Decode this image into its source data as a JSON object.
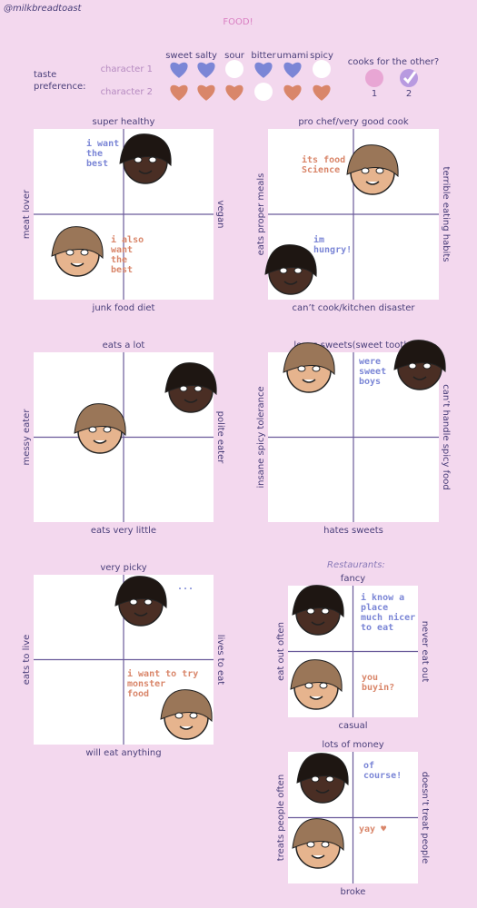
{
  "header": {
    "credit": "@milkbreadtoast",
    "title": "FOOD!"
  },
  "taste": {
    "label": "taste preference:",
    "columns": [
      "sweet",
      "salty",
      "sour",
      "bitter",
      "umami",
      "spicy"
    ],
    "rows": [
      {
        "name": "character 1",
        "color": "#7b86d6",
        "likes": [
          true,
          true,
          false,
          true,
          true,
          false
        ]
      },
      {
        "name": "character 2",
        "color": "#d9866a",
        "likes": [
          true,
          true,
          true,
          false,
          true,
          true
        ]
      }
    ]
  },
  "cooks": {
    "label": "cooks for the other?",
    "options": [
      "1",
      "2"
    ],
    "checked": [
      false,
      true
    ]
  },
  "restaurants_label": "Restaurants:",
  "panels": [
    {
      "top": "super healthy",
      "bottom": "junk food diet",
      "left": "meat lover",
      "right": "vegan",
      "notes": [
        {
          "lines": [
            "i want",
            "the",
            "best"
          ],
          "color": "#7b86d6"
        },
        {
          "lines": [
            "i also",
            "want",
            "the",
            "best"
          ],
          "color": "#d9866a"
        }
      ]
    },
    {
      "top": "pro chef/very good cook",
      "bottom": "can’t cook/kitchen disaster",
      "left": "eats proper meals",
      "right": "terrible eating habits",
      "notes": [
        {
          "lines": [
            "its food",
            "Science"
          ],
          "color": "#d9866a"
        },
        {
          "lines": [
            "im",
            "hungry!"
          ],
          "color": "#7b86d6"
        }
      ]
    },
    {
      "top": "eats a lot",
      "bottom": "eats very little",
      "left": "messy eater",
      "right": "polite eater",
      "notes": []
    },
    {
      "top": "loves sweets(sweet tooth)",
      "bottom": "hates sweets",
      "left": "insane spicy tolerance",
      "right": "can’t handle spicy food",
      "notes": [
        {
          "lines": [
            "were",
            "sweet",
            "boys"
          ],
          "color": "#7b86d6"
        }
      ]
    },
    {
      "top": "very picky",
      "bottom": "will eat anything",
      "left": "eats to live",
      "right": "lives to eat",
      "notes": [
        {
          "lines": [
            "..."
          ],
          "color": "#7b86d6"
        },
        {
          "lines": [
            "i want to try",
            "monster",
            "food"
          ],
          "color": "#d9866a"
        }
      ]
    },
    {
      "top": "fancy",
      "bottom": "casual",
      "left": "eat out often",
      "right": "never eat out",
      "notes": [
        {
          "lines": [
            "i know a",
            "place",
            "much nicer",
            "to eat"
          ],
          "color": "#7b86d6"
        },
        {
          "lines": [
            "you",
            "buyin?"
          ],
          "color": "#d9866a"
        }
      ]
    },
    {
      "top": "lots of money",
      "bottom": "broke",
      "left": "treats people often",
      "right": "doesn’t treat people",
      "notes": [
        {
          "lines": [
            "of",
            "course!"
          ],
          "color": "#7b86d6"
        },
        {
          "lines": [
            "yay ♥"
          ],
          "color": "#d9866a"
        }
      ]
    }
  ]
}
